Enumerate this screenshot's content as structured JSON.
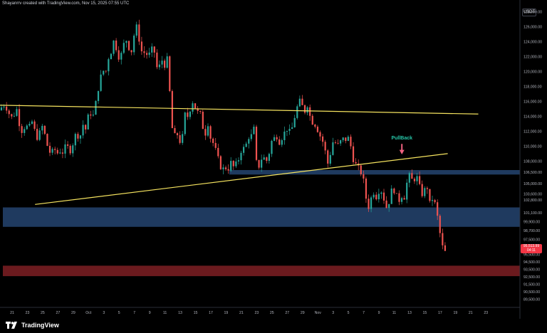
{
  "header": {
    "caption": "Shayanrrv created with TradingView.com, Nov 15, 2025 07:55 UTC"
  },
  "currency": "USDT",
  "brand": "TradingView",
  "colors": {
    "up": "#26a69a",
    "down": "#ef5350",
    "trendline": "#f5e35f",
    "zone_blue": "#1f3a5f",
    "zone_red": "#6b1a1e",
    "annotation": "#26c6a8",
    "arrow": "#f06280",
    "last_price_bg": "#f23645"
  },
  "last_price": {
    "value": "95,513.99",
    "countdown": "04:11"
  },
  "chart_data": {
    "type": "candlestick",
    "ylim": [
      88800,
      128800
    ],
    "y_ticks": [
      "128,000.00",
      "126,000.00",
      "124,000.00",
      "122,000.00",
      "120,000.00",
      "118,000.00",
      "116,000.00",
      "114,000.00",
      "112,000.00",
      "110,000.00",
      "108,000.00",
      "106,500.00",
      "105,000.00",
      "103,600.00",
      "102,800.00",
      "101,100.00",
      "99,900.00",
      "98,700.00",
      "97,500.00",
      "95,500.00",
      "94,500.00",
      "93,500.00",
      "92,500.00",
      "91,500.00",
      "90,500.00",
      "89,500.00"
    ],
    "x_ticks": [
      "21",
      "23",
      "25",
      "27",
      "29",
      "Oct",
      "3",
      "5",
      "7",
      "9",
      "11",
      "13",
      "15",
      "17",
      "19",
      "21",
      "23",
      "25",
      "27",
      "29",
      "Nov",
      "3",
      "5",
      "7",
      "9",
      "11",
      "13",
      "15",
      "17",
      "19",
      "21",
      "23"
    ],
    "close_path": [
      [
        0,
        114800
      ],
      [
        4,
        115600
      ],
      [
        8,
        115400
      ],
      [
        12,
        114500
      ],
      [
        16,
        113800
      ],
      [
        20,
        114300
      ],
      [
        24,
        115000
      ],
      [
        28,
        112500
      ],
      [
        32,
        111900
      ],
      [
        36,
        113100
      ],
      [
        40,
        112000
      ],
      [
        44,
        113600
      ],
      [
        48,
        112200
      ],
      [
        52,
        111200
      ],
      [
        56,
        111800
      ],
      [
        60,
        112800
      ],
      [
        64,
        111000
      ],
      [
        68,
        109500
      ],
      [
        72,
        108900
      ],
      [
        76,
        109700
      ],
      [
        80,
        109000
      ],
      [
        84,
        109400
      ],
      [
        88,
        109200
      ],
      [
        92,
        109900
      ],
      [
        96,
        109800
      ],
      [
        100,
        109300
      ],
      [
        104,
        111200
      ],
      [
        108,
        111700
      ],
      [
        112,
        111000
      ],
      [
        116,
        113000
      ],
      [
        120,
        112200
      ],
      [
        124,
        114000
      ],
      [
        128,
        114500
      ],
      [
        132,
        113900
      ],
      [
        136,
        116900
      ],
      [
        140,
        118600
      ],
      [
        144,
        120300
      ],
      [
        148,
        119600
      ],
      [
        152,
        121800
      ],
      [
        156,
        122700
      ],
      [
        160,
        124200
      ],
      [
        164,
        122900
      ],
      [
        168,
        121600
      ],
      [
        172,
        122800
      ],
      [
        176,
        124600
      ],
      [
        180,
        123500
      ],
      [
        184,
        122400
      ],
      [
        188,
        124800
      ],
      [
        192,
        126000
      ],
      [
        196,
        124000
      ],
      [
        200,
        122200
      ],
      [
        204,
        122700
      ],
      [
        208,
        121900
      ],
      [
        212,
        122800
      ],
      [
        216,
        123100
      ],
      [
        220,
        120500
      ],
      [
        224,
        120700
      ],
      [
        228,
        121600
      ],
      [
        232,
        120700
      ],
      [
        236,
        122000
      ],
      [
        240,
        113600
      ],
      [
        244,
        111000
      ],
      [
        248,
        111900
      ],
      [
        252,
        110600
      ],
      [
        256,
        111100
      ],
      [
        260,
        114400
      ],
      [
        264,
        113900
      ],
      [
        268,
        115400
      ],
      [
        272,
        116300
      ],
      [
        276,
        114200
      ],
      [
        280,
        114900
      ],
      [
        284,
        112800
      ],
      [
        288,
        111600
      ],
      [
        292,
        113100
      ],
      [
        296,
        110900
      ],
      [
        300,
        110300
      ],
      [
        304,
        109000
      ],
      [
        308,
        107700
      ],
      [
        312,
        106800
      ],
      [
        316,
        107200
      ],
      [
        320,
        106900
      ],
      [
        324,
        107800
      ],
      [
        328,
        107200
      ],
      [
        332,
        107600
      ],
      [
        336,
        108500
      ],
      [
        340,
        110000
      ],
      [
        344,
        109400
      ],
      [
        348,
        111400
      ],
      [
        352,
        111000
      ],
      [
        356,
        112800
      ],
      [
        360,
        107800
      ],
      [
        364,
        107300
      ],
      [
        368,
        108600
      ],
      [
        372,
        108300
      ],
      [
        376,
        107900
      ],
      [
        380,
        110500
      ],
      [
        384,
        110900
      ],
      [
        388,
        111500
      ],
      [
        392,
        110600
      ],
      [
        396,
        111200
      ],
      [
        400,
        111900
      ],
      [
        404,
        112500
      ],
      [
        408,
        111500
      ],
      [
        412,
        113300
      ],
      [
        416,
        114800
      ],
      [
        420,
        116100
      ],
      [
        424,
        115400
      ],
      [
        428,
        114700
      ],
      [
        432,
        115700
      ],
      [
        436,
        113600
      ],
      [
        440,
        113100
      ],
      [
        444,
        112800
      ],
      [
        448,
        111600
      ],
      [
        452,
        111000
      ],
      [
        456,
        109600
      ],
      [
        460,
        107600
      ],
      [
        464,
        109100
      ],
      [
        468,
        110800
      ],
      [
        472,
        110300
      ],
      [
        476,
        110000
      ],
      [
        480,
        111100
      ],
      [
        484,
        110700
      ],
      [
        488,
        111300
      ],
      [
        492,
        110200
      ],
      [
        496,
        108300
      ],
      [
        500,
        107400
      ],
      [
        504,
        106900
      ],
      [
        508,
        106300
      ],
      [
        512,
        104600
      ],
      [
        516,
        101400
      ],
      [
        520,
        102700
      ],
      [
        524,
        104000
      ],
      [
        528,
        103200
      ],
      [
        532,
        104100
      ],
      [
        536,
        104000
      ],
      [
        540,
        102600
      ],
      [
        544,
        101400
      ],
      [
        548,
        103600
      ],
      [
        552,
        104500
      ],
      [
        556,
        103400
      ],
      [
        560,
        102700
      ],
      [
        564,
        103400
      ],
      [
        568,
        103200
      ],
      [
        572,
        105500
      ],
      [
        576,
        106200
      ],
      [
        580,
        105000
      ],
      [
        584,
        106300
      ],
      [
        588,
        104900
      ],
      [
        592,
        103500
      ],
      [
        596,
        104100
      ],
      [
        600,
        104500
      ],
      [
        604,
        101900
      ],
      [
        608,
        103300
      ],
      [
        612,
        101700
      ],
      [
        616,
        99500
      ],
      [
        620,
        96800
      ],
      [
        624,
        95900
      ],
      [
        628,
        95500
      ]
    ],
    "trendlines": [
      {
        "from": [
          "Sep 24",
          102200
        ],
        "to": [
          "Nov 17",
          109000
        ]
      },
      {
        "from": [
          "Sep 13",
          115600
        ],
        "to": [
          "Nov 21",
          114300
        ]
      }
    ],
    "zones": [
      {
        "name": "upper-support-zone",
        "y_top": 106800,
        "y_bottom": 106200
      },
      {
        "name": "middle-support-zone",
        "y_top": 101800,
        "y_bottom": 99200
      },
      {
        "name": "lower-support-zone",
        "y_top": 94000,
        "y_bottom": 92600
      }
    ],
    "annotations": [
      {
        "text": "PullBack"
      }
    ]
  }
}
